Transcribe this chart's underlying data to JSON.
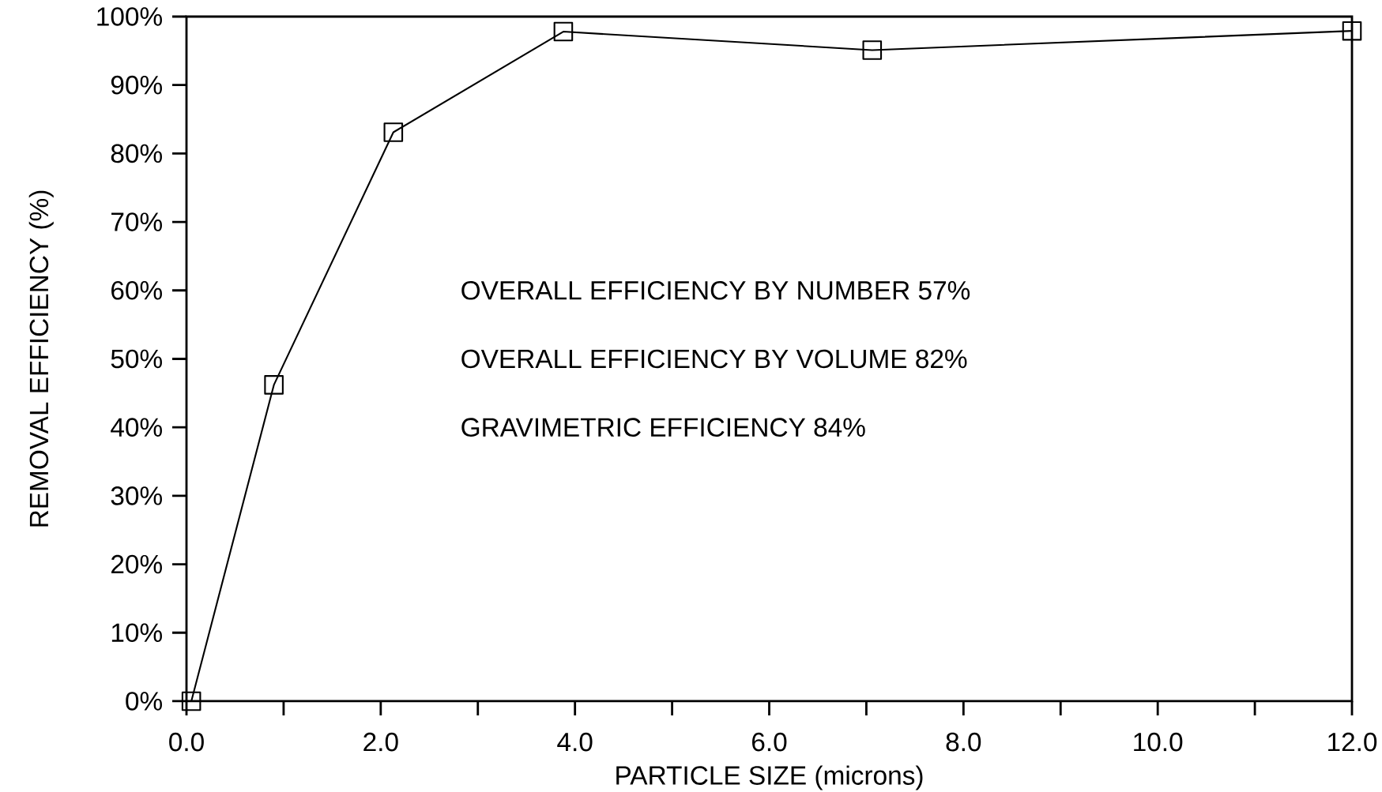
{
  "chart_data": {
    "type": "line",
    "xlabel": "PARTICLE SIZE (microns)",
    "ylabel": "REMOVAL EFFICIENCY (%)",
    "x": [
      0.05,
      0.9,
      2.13,
      3.88,
      7.06,
      12.0
    ],
    "series": [
      {
        "color": "#000000",
        "values": [
          0,
          46.2,
          83.1,
          97.8,
          95.1,
          97.9
        ]
      }
    ],
    "xlim": [
      0,
      12
    ],
    "ylim": [
      0,
      100
    ],
    "xticks": [
      {
        "value": 0,
        "label": "0.0"
      },
      {
        "value": 2,
        "label": "2.0"
      },
      {
        "value": 4,
        "label": "4.0"
      },
      {
        "value": 6,
        "label": "6.0"
      },
      {
        "value": 8,
        "label": "8.0"
      },
      {
        "value": 10,
        "label": "10.0"
      },
      {
        "value": 12,
        "label": "12.0"
      }
    ],
    "yticks": [
      {
        "value": 0,
        "label": "0%"
      },
      {
        "value": 10,
        "label": "10%"
      },
      {
        "value": 20,
        "label": "20%"
      },
      {
        "value": 30,
        "label": "30%"
      },
      {
        "value": 40,
        "label": "40%"
      },
      {
        "value": 50,
        "label": "50%"
      },
      {
        "value": 60,
        "label": "60%"
      },
      {
        "value": 70,
        "label": "70%"
      },
      {
        "value": 80,
        "label": "80%"
      },
      {
        "value": 90,
        "label": "90%"
      },
      {
        "value": 100,
        "label": "100%"
      }
    ],
    "annotations": [
      "OVERALL EFFICIENCY BY NUMBER 57%",
      "OVERALL EFFICIENCY BY VOLUME 82%",
      "GRAVIMETRIC EFFICIENCY 84%"
    ],
    "grid": false,
    "marker": "square",
    "line_style": "solid"
  }
}
